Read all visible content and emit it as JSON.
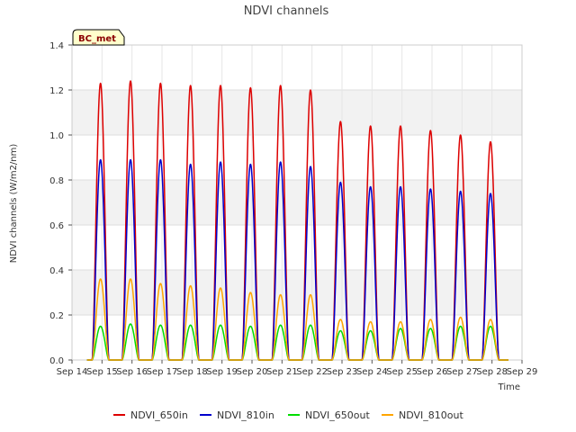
{
  "chart_data": {
    "type": "line",
    "title": "NDVI channels",
    "xlabel": "Time",
    "ylabel": "NDVI channels (W/m2/nm)",
    "badge": "BC_met",
    "x_ticks": [
      "Sep 14",
      "Sep 15",
      "Sep 16",
      "Sep 17",
      "Sep 18",
      "Sep 19",
      "Sep 20",
      "Sep 21",
      "Sep 22",
      "Sep 23",
      "Sep 24",
      "Sep 25",
      "Sep 26",
      "Sep 27",
      "Sep 28",
      "Sep 29"
    ],
    "x_range_days": [
      14,
      29
    ],
    "ylim": [
      0,
      1.4
    ],
    "y_ticks": [
      "0.0",
      "0.2",
      "0.4",
      "0.6",
      "0.8",
      "1.0",
      "1.2",
      "1.4"
    ],
    "y_tick_values": [
      0,
      0.2,
      0.4,
      0.6,
      0.8,
      1.0,
      1.2,
      1.4
    ],
    "data_start_day": 14.5,
    "data_end_day": 28.55,
    "day_peak_days": [
      14.95,
      15.95,
      16.95,
      17.95,
      18.95,
      19.95,
      20.95,
      21.95,
      22.95,
      23.95,
      24.95,
      25.95,
      26.95,
      27.95
    ],
    "day_half_width": 0.28,
    "series": [
      {
        "name": "NDVI_650in",
        "color": "#dd0000",
        "peaks": [
          1.23,
          1.24,
          1.23,
          1.22,
          1.22,
          1.21,
          1.22,
          1.2,
          1.06,
          1.04,
          1.04,
          1.02,
          1.0,
          0.97
        ]
      },
      {
        "name": "NDVI_810in",
        "color": "#0000cc",
        "peaks": [
          0.89,
          0.89,
          0.89,
          0.87,
          0.88,
          0.87,
          0.88,
          0.86,
          0.79,
          0.77,
          0.77,
          0.76,
          0.75,
          0.74
        ]
      },
      {
        "name": "NDVI_650out",
        "color": "#00dd00",
        "peaks": [
          0.15,
          0.16,
          0.155,
          0.155,
          0.155,
          0.15,
          0.155,
          0.155,
          0.13,
          0.13,
          0.14,
          0.14,
          0.15,
          0.15
        ]
      },
      {
        "name": "NDVI_810out",
        "color": "#ffa500",
        "peaks": [
          0.36,
          0.36,
          0.34,
          0.33,
          0.32,
          0.3,
          0.29,
          0.29,
          0.18,
          0.17,
          0.17,
          0.18,
          0.19,
          0.18
        ]
      }
    ],
    "legend_position": "bottom"
  }
}
